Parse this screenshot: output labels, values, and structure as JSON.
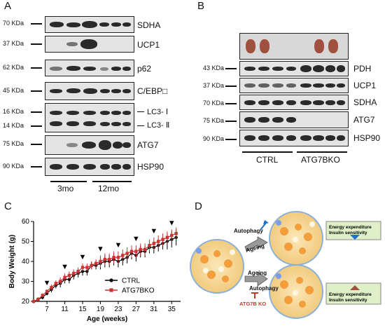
{
  "panel_labels": {
    "a": "A",
    "b": "B",
    "c": "C",
    "d": "D"
  },
  "panel_a": {
    "rows": [
      {
        "kda": "70 KDa",
        "protein": "SDHA"
      },
      {
        "kda": "37 KDa",
        "protein": "UCP1"
      },
      {
        "kda": "62 KDa",
        "protein": "p62"
      },
      {
        "kda": "45 KDa",
        "protein": "C/EBP□"
      },
      {
        "kda": "16 KDa",
        "protein": "LC3- Ⅰ"
      },
      {
        "kda": "14 KDa",
        "protein": "LC3- Ⅱ"
      },
      {
        "kda": "75 KDa",
        "protein": "ATG7"
      },
      {
        "kda": "90 KDa",
        "protein": "HSP90"
      }
    ],
    "groups": [
      "3mo",
      "12mo"
    ]
  },
  "panel_b": {
    "rows": [
      {
        "kda": "43 KDa",
        "protein": "PDH"
      },
      {
        "kda": "37 KDa",
        "protein": "UCP1"
      },
      {
        "kda": "70 KDa",
        "protein": "SDHA"
      },
      {
        "kda": "75 KDa",
        "protein": "ATG7"
      },
      {
        "kda": "90 KDa",
        "protein": "HSP90"
      }
    ],
    "groups": [
      "CTRL",
      "ATG7BKO"
    ]
  },
  "panel_d": {
    "autophagy_top": "Autophagy",
    "ageing_top": "Ageing",
    "ageing_bottom": "Ageing",
    "autophagy_bottom": "Autophagy",
    "ko_label": "ATG7B KO",
    "box_line1": "Energy expenditure",
    "box_line2": "Insulin sensitivity",
    "colors": {
      "arrow_blue": "#1f6fd0",
      "arrow_red": "#c0392b",
      "box_fill": "#dff0c8"
    }
  },
  "chart_data": {
    "type": "line",
    "xlabel": "Age (weeks)",
    "ylabel": "Body Weight (g)",
    "xlim": [
      4,
      37
    ],
    "ylim": [
      20,
      60
    ],
    "xticks": [
      7,
      11,
      15,
      19,
      23,
      27,
      31,
      35
    ],
    "yticks": [
      20,
      30,
      40,
      50,
      60
    ],
    "x": [
      4,
      5,
      6,
      7,
      8,
      9,
      10,
      11,
      12,
      13,
      14,
      15,
      16,
      17,
      18,
      19,
      20,
      21,
      22,
      23,
      24,
      25,
      26,
      27,
      28,
      29,
      30,
      31,
      32,
      33,
      34,
      35,
      36
    ],
    "series": [
      {
        "name": "CTRL",
        "color": "#000000",
        "marker": "circle",
        "values": [
          20,
          21,
          22,
          24,
          26,
          28,
          29,
          31,
          31,
          33,
          34,
          35,
          35,
          38,
          38,
          39,
          40,
          40,
          41,
          40,
          41,
          42,
          44,
          43,
          45,
          45,
          47,
          47,
          48,
          49,
          50,
          51,
          52
        ],
        "errors": [
          1,
          1,
          1,
          1,
          1.5,
          1.5,
          2,
          2,
          2,
          2,
          2,
          2,
          2,
          2,
          2,
          3,
          3,
          3,
          3,
          3,
          3,
          3,
          3,
          3,
          3,
          3,
          3,
          3,
          3,
          3,
          4,
          4,
          4
        ]
      },
      {
        "name": "ATG7BKO",
        "color": "#cc3333",
        "marker": "square",
        "values": [
          20,
          21,
          23,
          25,
          27,
          29,
          30,
          32,
          33,
          34,
          35,
          37,
          37,
          38,
          39,
          40,
          41,
          41,
          42,
          42,
          43,
          44,
          45,
          45,
          46,
          46,
          48,
          49,
          50,
          51,
          52,
          53,
          54
        ],
        "errors": [
          1,
          1,
          1,
          1,
          1.5,
          1.5,
          2,
          2,
          2,
          2,
          2,
          2,
          2,
          2,
          2,
          3,
          3,
          3,
          3,
          3,
          3,
          3,
          3,
          3,
          3,
          3,
          3,
          3,
          3,
          3,
          3,
          3,
          3
        ]
      }
    ],
    "significance_marker": "▼",
    "significance_x": [
      7,
      11,
      15,
      19,
      23,
      27,
      31,
      35
    ],
    "legend_position": "bottom-right"
  }
}
